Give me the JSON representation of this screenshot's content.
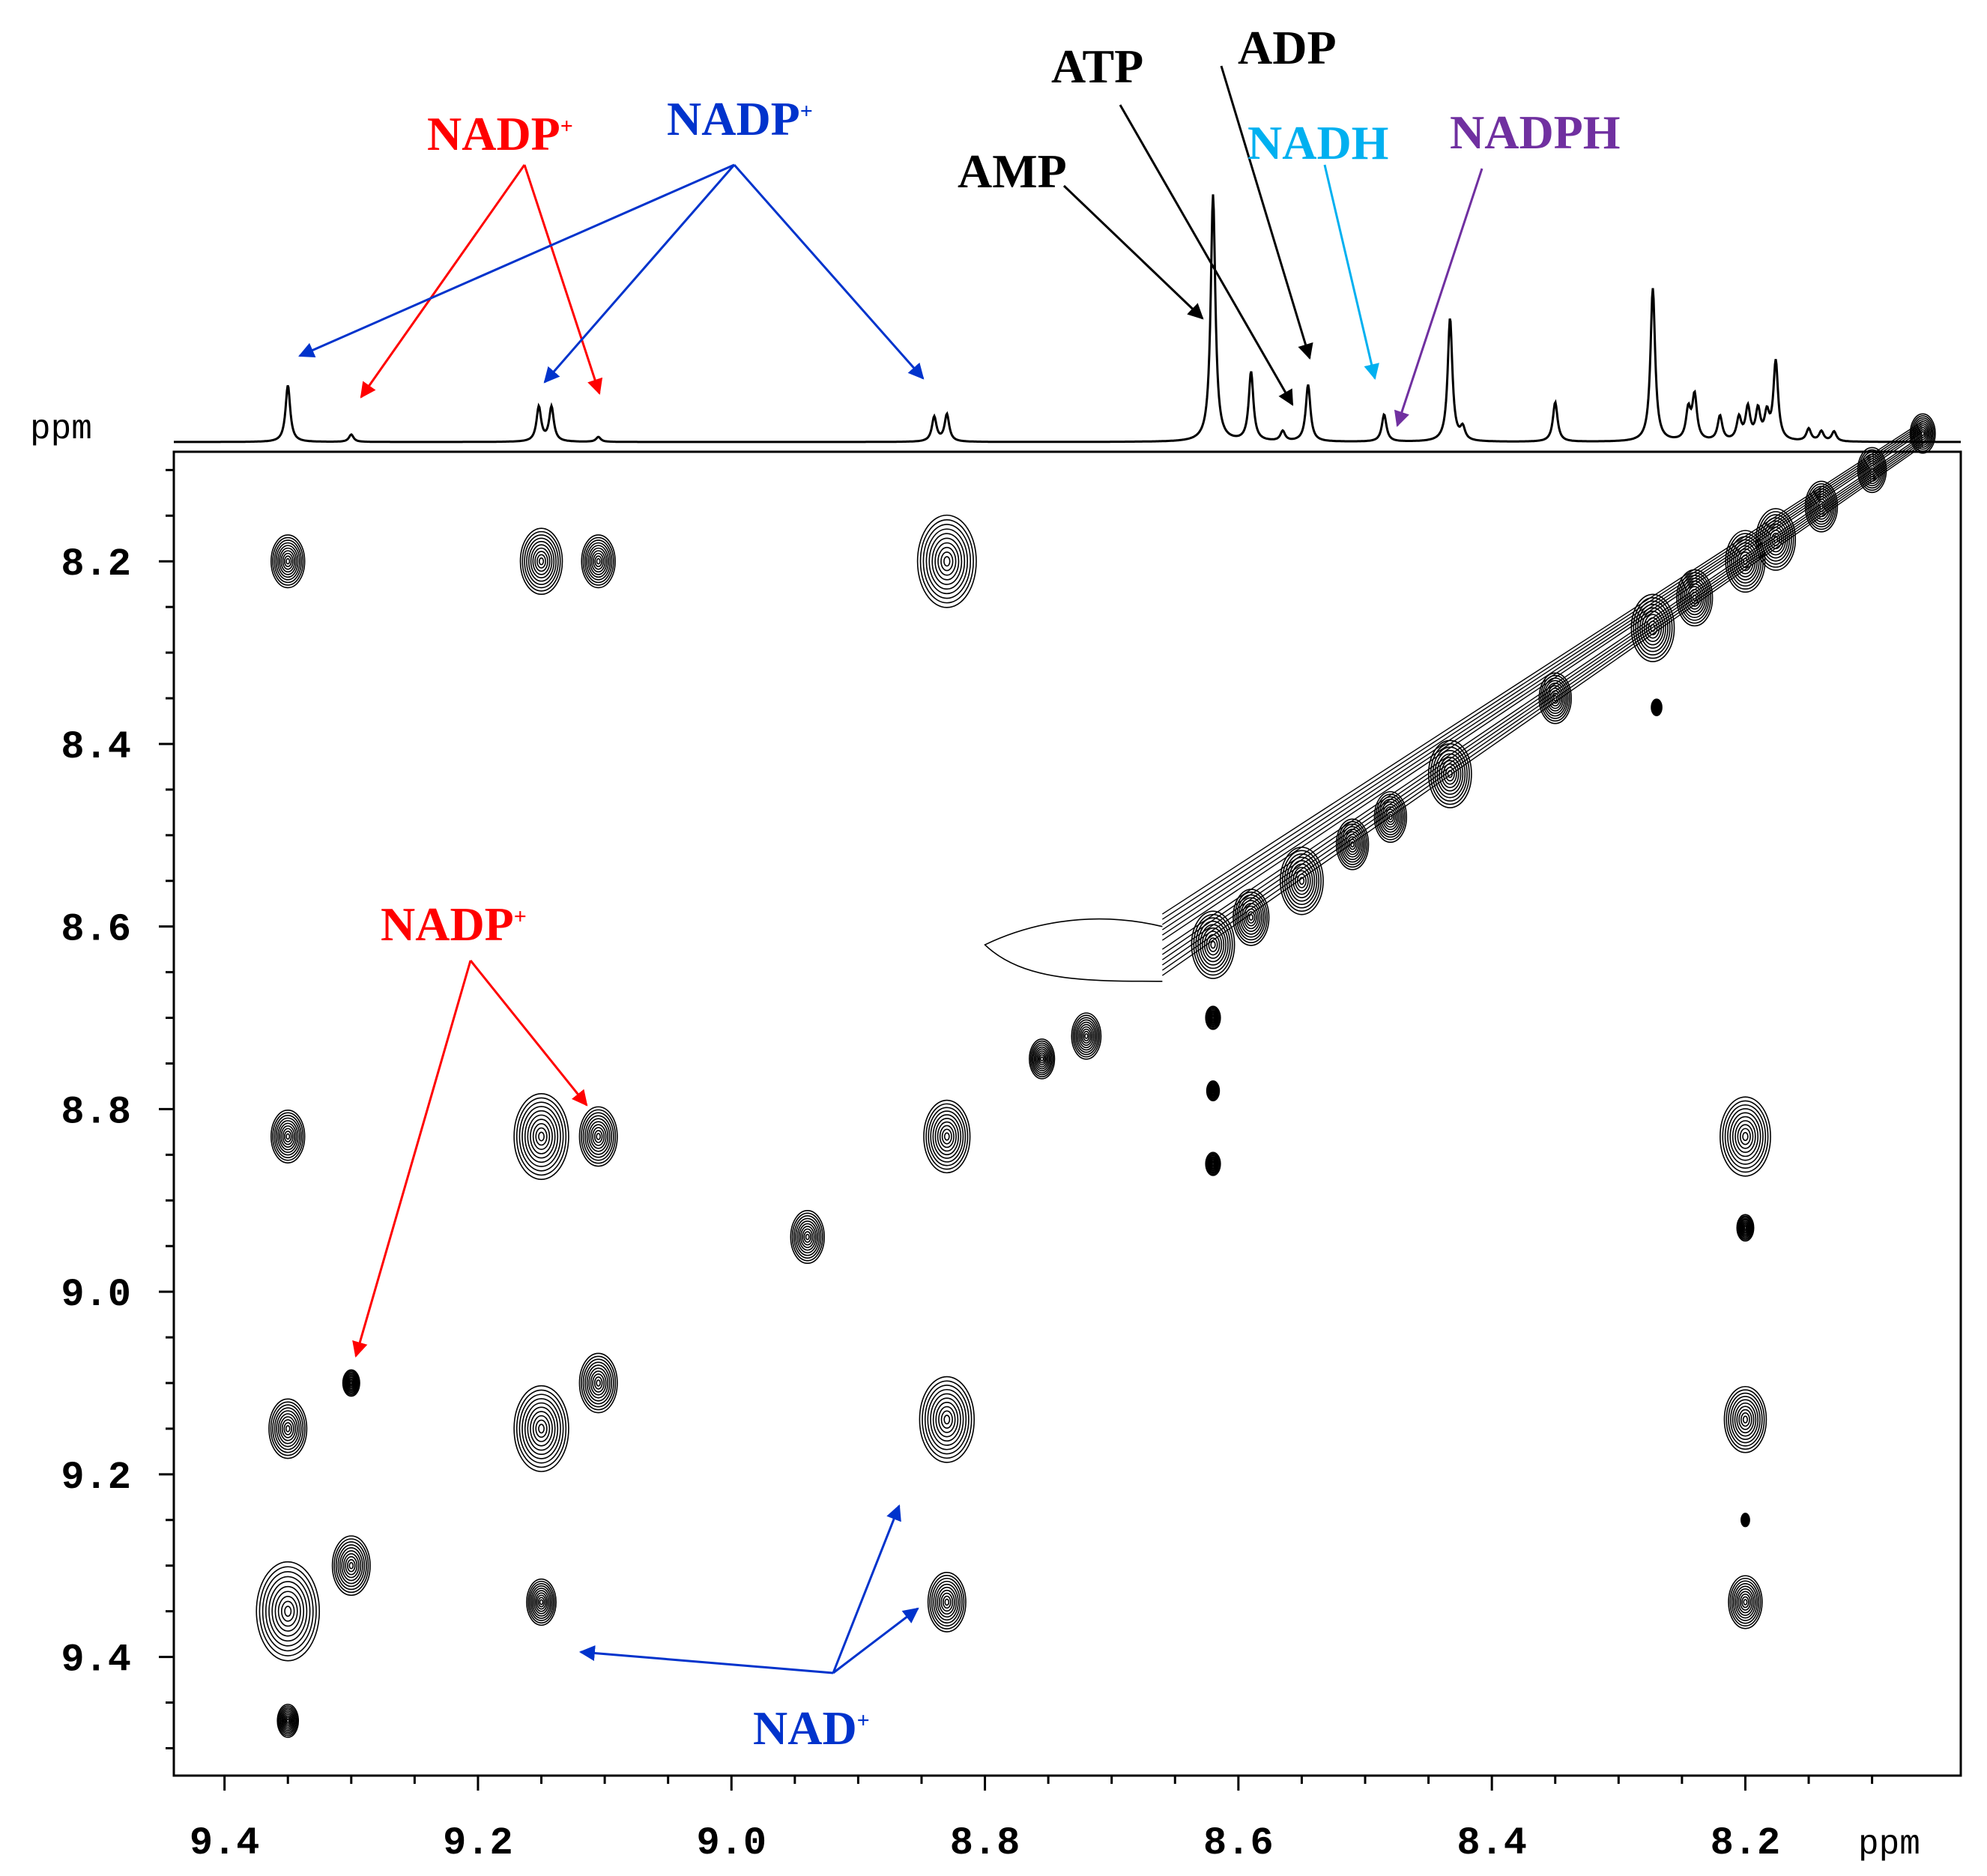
{
  "chart_data": {
    "type": "2d-nmr-contour",
    "title": "",
    "xlabel": "ppm",
    "ylabel": "ppm",
    "xlim": [
      9.44,
      8.03
    ],
    "ylim": [
      8.08,
      9.53
    ],
    "x_ticks": [
      "9.4",
      "9.2",
      "9.0",
      "8.8",
      "8.6",
      "8.4",
      "8.2"
    ],
    "x_tick_values": [
      9.4,
      9.2,
      9.0,
      8.8,
      8.6,
      8.4,
      8.2
    ],
    "y_ticks": [
      "8.2",
      "8.4",
      "8.6",
      "8.8",
      "9.0",
      "9.2",
      "9.4"
    ],
    "y_tick_values": [
      8.2,
      8.4,
      8.6,
      8.8,
      9.0,
      9.2,
      9.4
    ],
    "projection_peaks": [
      {
        "ppm": 9.35,
        "height": 0.23
      },
      {
        "ppm": 9.3,
        "height": 0.03
      },
      {
        "ppm": 9.152,
        "height": 0.14
      },
      {
        "ppm": 9.142,
        "height": 0.14
      },
      {
        "ppm": 9.105,
        "height": 0.02
      },
      {
        "ppm": 8.84,
        "height": 0.1
      },
      {
        "ppm": 8.83,
        "height": 0.11
      },
      {
        "ppm": 8.62,
        "height": 1.0
      },
      {
        "ppm": 8.59,
        "height": 0.28
      },
      {
        "ppm": 8.565,
        "height": 0.04
      },
      {
        "ppm": 8.545,
        "height": 0.23
      },
      {
        "ppm": 8.485,
        "height": 0.11
      },
      {
        "ppm": 8.433,
        "height": 0.5
      },
      {
        "ppm": 8.423,
        "height": 0.05
      },
      {
        "ppm": 8.35,
        "height": 0.16
      },
      {
        "ppm": 8.273,
        "height": 0.62
      },
      {
        "ppm": 8.245,
        "height": 0.12
      },
      {
        "ppm": 8.24,
        "height": 0.18
      },
      {
        "ppm": 8.22,
        "height": 0.1
      },
      {
        "ppm": 8.205,
        "height": 0.09
      },
      {
        "ppm": 8.198,
        "height": 0.13
      },
      {
        "ppm": 8.19,
        "height": 0.12
      },
      {
        "ppm": 8.183,
        "height": 0.1
      },
      {
        "ppm": 8.176,
        "height": 0.32
      },
      {
        "ppm": 8.15,
        "height": 0.05
      },
      {
        "ppm": 8.14,
        "height": 0.04
      },
      {
        "ppm": 8.13,
        "height": 0.04
      }
    ],
    "cross_peaks": [
      {
        "x": 9.35,
        "y": 8.2,
        "s": 0.8
      },
      {
        "x": 9.15,
        "y": 8.2,
        "s": 1.0
      },
      {
        "x": 9.105,
        "y": 8.2,
        "s": 0.8
      },
      {
        "x": 8.83,
        "y": 8.2,
        "s": 1.4
      },
      {
        "x": 9.35,
        "y": 8.83,
        "s": 0.8
      },
      {
        "x": 9.15,
        "y": 8.83,
        "s": 1.3
      },
      {
        "x": 9.105,
        "y": 8.83,
        "s": 0.9
      },
      {
        "x": 8.83,
        "y": 8.83,
        "s": 1.1
      },
      {
        "x": 8.94,
        "y": 8.94,
        "s": 0.8
      },
      {
        "x": 8.2,
        "y": 8.83,
        "s": 1.2
      },
      {
        "x": 9.35,
        "y": 9.15,
        "s": 0.9
      },
      {
        "x": 9.3,
        "y": 9.1,
        "s": 0.4
      },
      {
        "x": 9.15,
        "y": 9.15,
        "s": 1.3
      },
      {
        "x": 9.105,
        "y": 9.1,
        "s": 0.9
      },
      {
        "x": 8.83,
        "y": 9.14,
        "s": 1.3
      },
      {
        "x": 8.2,
        "y": 9.14,
        "s": 1.0
      },
      {
        "x": 9.35,
        "y": 9.35,
        "s": 1.5
      },
      {
        "x": 9.3,
        "y": 9.3,
        "s": 0.9
      },
      {
        "x": 9.15,
        "y": 9.34,
        "s": 0.7
      },
      {
        "x": 8.83,
        "y": 9.34,
        "s": 0.9
      },
      {
        "x": 8.2,
        "y": 9.34,
        "s": 0.8
      },
      {
        "x": 9.35,
        "y": 9.47,
        "s": 0.5
      },
      {
        "x": 8.755,
        "y": 8.745,
        "s": 0.6
      },
      {
        "x": 8.72,
        "y": 8.72,
        "s": 0.7
      }
    ],
    "diagonal_peaks": [
      {
        "ppm": 8.62,
        "s": 1.2
      },
      {
        "ppm": 8.59,
        "s": 1.0
      },
      {
        "ppm": 8.55,
        "s": 1.2
      },
      {
        "ppm": 8.51,
        "s": 0.9
      },
      {
        "ppm": 8.48,
        "s": 0.9
      },
      {
        "ppm": 8.433,
        "s": 1.2
      },
      {
        "ppm": 8.35,
        "s": 0.9
      },
      {
        "ppm": 8.273,
        "s": 1.2
      },
      {
        "ppm": 8.24,
        "s": 1.0
      },
      {
        "ppm": 8.2,
        "s": 1.1
      },
      {
        "ppm": 8.176,
        "s": 1.1
      },
      {
        "ppm": 8.14,
        "s": 0.9
      },
      {
        "ppm": 8.1,
        "s": 0.8
      },
      {
        "ppm": 8.06,
        "s": 0.7
      }
    ],
    "annotations": [
      {
        "label": "NADP",
        "sup": "+",
        "color": "#ff0000"
      },
      {
        "label": "NADP",
        "sup": "+",
        "color": "#0033cc"
      },
      {
        "label": "AMP",
        "sup": "",
        "color": "#000000"
      },
      {
        "label": "ATP",
        "sup": "",
        "color": "#000000"
      },
      {
        "label": "ADP",
        "sup": "",
        "color": "#000000"
      },
      {
        "label": "NADH",
        "sup": "",
        "color": "#00b0f0"
      },
      {
        "label": "NADPH",
        "sup": "",
        "color": "#7030a0"
      },
      {
        "label": "NADP",
        "sup": "+",
        "color": "#ff0000"
      },
      {
        "label": "NAD",
        "sup": "+",
        "color": "#0033cc"
      }
    ]
  }
}
